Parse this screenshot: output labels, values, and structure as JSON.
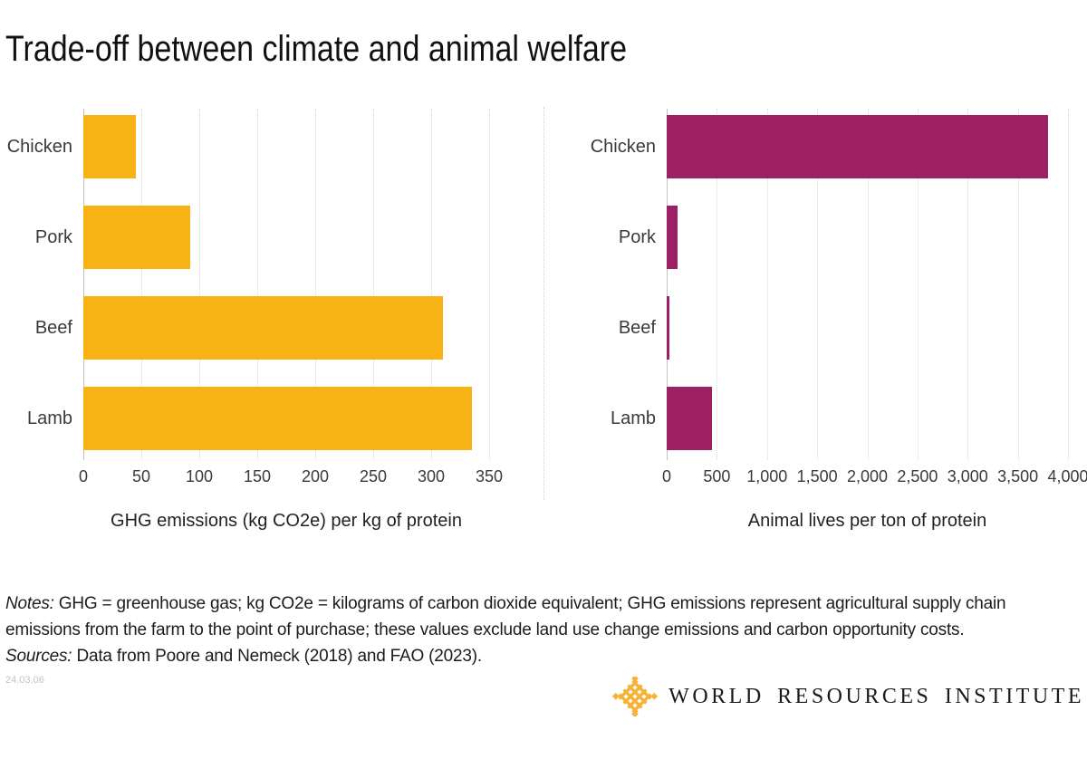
{
  "title": "Trade-off between climate and animal welfare",
  "chart_data": [
    {
      "type": "bar",
      "orientation": "horizontal",
      "title": "",
      "categories": [
        "Chicken",
        "Pork",
        "Beef",
        "Lamb"
      ],
      "values": [
        45,
        92,
        310,
        335
      ],
      "xlabel": "GHG emissions (kg CO2e) per kg of protein",
      "ylabel": "",
      "xlim": [
        0,
        350
      ],
      "xgrid": [
        0,
        50,
        100,
        150,
        200,
        250,
        300,
        350
      ],
      "tick_labels": [
        "0",
        "50",
        "100",
        "150",
        "200",
        "250",
        "300",
        "350"
      ],
      "grid": "vertical-dotted",
      "legend": "none",
      "bar_color": "#F9B214"
    },
    {
      "type": "bar",
      "orientation": "horizontal",
      "title": "",
      "categories": [
        "Chicken",
        "Pork",
        "Beef",
        "Lamb"
      ],
      "values": [
        3800,
        110,
        30,
        450
      ],
      "xlabel": "Animal lives per ton of protein",
      "ylabel": "",
      "xlim": [
        0,
        4000
      ],
      "xgrid": [
        0,
        500,
        1000,
        1500,
        2000,
        2500,
        3000,
        3500,
        4000
      ],
      "tick_labels": [
        "0",
        "500",
        "1,000",
        "1,500",
        "2,000",
        "2,500",
        "3,000",
        "3,500",
        "4,000"
      ],
      "grid": "vertical-dotted",
      "legend": "none",
      "bar_color": "#9E2064"
    }
  ],
  "notes": {
    "label": "Notes:",
    "text": " GHG = greenhouse gas; kg CO2e = kilograms of carbon dioxide equivalent; GHG emissions represent agricultural supply chain emissions from the farm to the point of purchase; these values exclude land use change emissions and carbon opportunity costs."
  },
  "sources": {
    "label": "Sources:",
    "text": " Data from Poore and Nemeck (2018) and FAO (2023)."
  },
  "date_stamp": "24.03.06",
  "logo": {
    "text": "WORLD RESOURCES INSTITUTE",
    "icon_color": "#F5B335"
  },
  "colors": {
    "left_bar": "#F9B214",
    "right_bar": "#9E2064",
    "gridline": "#D8D8D8",
    "axis_line": "#C3C3C3",
    "title_text": "#111111",
    "body_text": "#3C3C3C"
  }
}
